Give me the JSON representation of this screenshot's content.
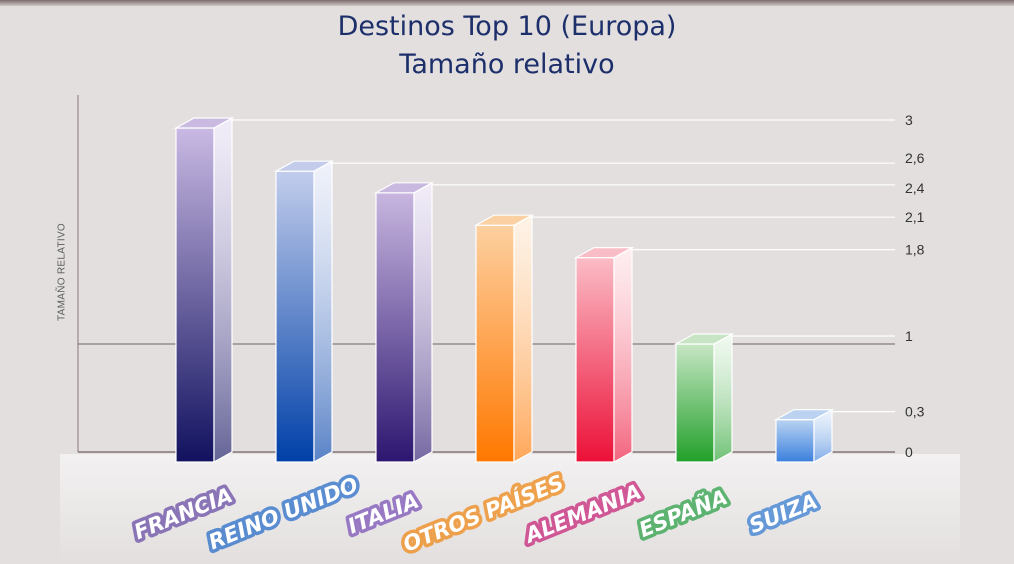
{
  "chart_data": {
    "type": "bar",
    "title": "Destinos Top 10 (Europa)",
    "subtitle": "Tamaño relativo",
    "xlabel": "",
    "ylabel": "TAMAÑO RELATIVO",
    "categories": [
      "FRANCIA",
      "REINO UNIDO",
      "ITALIA",
      "OTROS PAÍSES",
      "ALEMANIA",
      "ESPAÑA",
      "SUIZA"
    ],
    "values": [
      3,
      2.6,
      2.4,
      2.1,
      1.8,
      1,
      0.3
    ],
    "value_labels": [
      "3",
      "2,6",
      "2,4",
      "2,1",
      "1,8",
      "1",
      "0,3"
    ],
    "zero_label": "0",
    "ylim": [
      0,
      3
    ],
    "grid": false,
    "reference_line": 1,
    "bar_colors": [
      {
        "top": "#c9b9e3",
        "bottom": "#11115f",
        "label": "#6a4fa6"
      },
      {
        "top": "#c2cdec",
        "bottom": "#0040a8",
        "label": "#2a6fc9"
      },
      {
        "top": "#c8b6e0",
        "bottom": "#2c1670",
        "label": "#7d55b8"
      },
      {
        "top": "#fdd0a0",
        "bottom": "#ff7800",
        "label": "#f08a1a"
      },
      {
        "top": "#fbbcc6",
        "bottom": "#ec1038",
        "label": "#c8287a"
      },
      {
        "top": "#c6e6c4",
        "bottom": "#22a02a",
        "label": "#2fa24a"
      },
      {
        "top": "#b9d3f2",
        "bottom": "#3b7fdd",
        "label": "#3a7fd3"
      }
    ]
  }
}
